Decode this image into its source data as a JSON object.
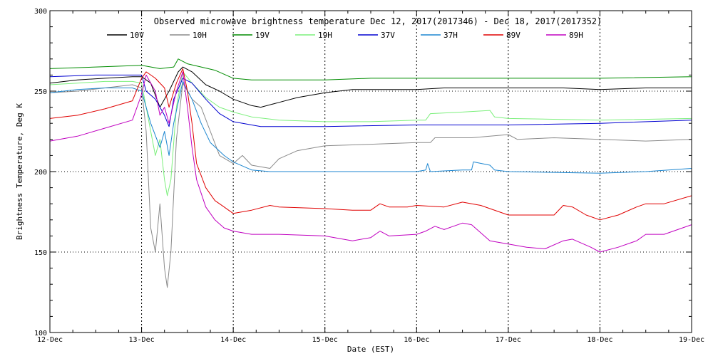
{
  "chart_data": {
    "type": "line",
    "title": "Observed microwave brightness temperature Dec 12, 2017(2017346) - Dec 18, 2017(2017352)",
    "xlabel": "Date (EST)",
    "ylabel": "Brightness Temperature, Deg K",
    "xlim": [
      0,
      7
    ],
    "ylim": [
      100,
      300
    ],
    "yticks": [
      100,
      150,
      200,
      250,
      300
    ],
    "xticks": [
      0,
      1,
      2,
      3,
      4,
      5,
      6,
      7
    ],
    "xtick_labels": [
      "12-Dec",
      "13-Dec",
      "14-Dec",
      "15-Dec",
      "16-Dec",
      "17-Dec",
      "18-Dec",
      "19-Dec"
    ],
    "grid": "dotted",
    "series": [
      {
        "name": "10V",
        "color": "#000000",
        "points": [
          [
            0,
            255
          ],
          [
            0.3,
            257
          ],
          [
            0.6,
            258
          ],
          [
            0.9,
            259
          ],
          [
            1.0,
            259
          ],
          [
            1.1,
            255
          ],
          [
            1.2,
            240
          ],
          [
            1.3,
            250
          ],
          [
            1.4,
            262
          ],
          [
            1.45,
            265
          ],
          [
            1.55,
            262
          ],
          [
            1.7,
            254
          ],
          [
            1.85,
            250
          ],
          [
            2.0,
            245
          ],
          [
            2.2,
            241
          ],
          [
            2.3,
            240
          ],
          [
            2.5,
            243
          ],
          [
            2.7,
            246
          ],
          [
            3.0,
            249
          ],
          [
            3.3,
            251
          ],
          [
            3.6,
            251
          ],
          [
            4.0,
            251
          ],
          [
            4.3,
            252
          ],
          [
            4.6,
            252
          ],
          [
            5.0,
            252
          ],
          [
            5.3,
            252
          ],
          [
            5.6,
            252
          ],
          [
            6.0,
            251
          ],
          [
            6.5,
            252
          ],
          [
            7.0,
            252
          ]
        ]
      },
      {
        "name": "10H",
        "color": "#8a8a8a",
        "points": [
          [
            0,
            249
          ],
          [
            0.3,
            250
          ],
          [
            0.6,
            252
          ],
          [
            0.9,
            254
          ],
          [
            1.0,
            252
          ],
          [
            1.05,
            225
          ],
          [
            1.1,
            165
          ],
          [
            1.15,
            150
          ],
          [
            1.2,
            180
          ],
          [
            1.25,
            140
          ],
          [
            1.28,
            128
          ],
          [
            1.32,
            150
          ],
          [
            1.38,
            220
          ],
          [
            1.45,
            255
          ],
          [
            1.55,
            245
          ],
          [
            1.65,
            240
          ],
          [
            1.75,
            225
          ],
          [
            1.85,
            210
          ],
          [
            2.0,
            205
          ],
          [
            2.1,
            210
          ],
          [
            2.2,
            204
          ],
          [
            2.3,
            203
          ],
          [
            2.4,
            202
          ],
          [
            2.5,
            208
          ],
          [
            2.7,
            213
          ],
          [
            3.0,
            216
          ],
          [
            3.5,
            217
          ],
          [
            4.0,
            218
          ],
          [
            4.15,
            218
          ],
          [
            4.2,
            221
          ],
          [
            4.6,
            221
          ],
          [
            5.0,
            223
          ],
          [
            5.1,
            220
          ],
          [
            5.5,
            221
          ],
          [
            6.0,
            220
          ],
          [
            6.5,
            219
          ],
          [
            7.0,
            220
          ]
        ]
      },
      {
        "name": "19V",
        "color": "#008c00",
        "points": [
          [
            0,
            264
          ],
          [
            0.5,
            265
          ],
          [
            1.0,
            266
          ],
          [
            1.2,
            264
          ],
          [
            1.35,
            265
          ],
          [
            1.4,
            270
          ],
          [
            1.5,
            267
          ],
          [
            1.8,
            263
          ],
          [
            2.0,
            258
          ],
          [
            2.2,
            257
          ],
          [
            2.6,
            257
          ],
          [
            3.0,
            257
          ],
          [
            3.5,
            258
          ],
          [
            4.0,
            258
          ],
          [
            5.0,
            258
          ],
          [
            6.0,
            258
          ],
          [
            7.0,
            259
          ]
        ]
      },
      {
        "name": "19H",
        "color": "#7cf07c",
        "points": [
          [
            0,
            254
          ],
          [
            0.3,
            255
          ],
          [
            0.6,
            256
          ],
          [
            0.9,
            256
          ],
          [
            1.0,
            255
          ],
          [
            1.1,
            225
          ],
          [
            1.15,
            210
          ],
          [
            1.2,
            220
          ],
          [
            1.25,
            195
          ],
          [
            1.28,
            185
          ],
          [
            1.32,
            195
          ],
          [
            1.38,
            240
          ],
          [
            1.45,
            262
          ],
          [
            1.55,
            255
          ],
          [
            1.7,
            246
          ],
          [
            1.85,
            240
          ],
          [
            2.0,
            237
          ],
          [
            2.2,
            234
          ],
          [
            2.5,
            232
          ],
          [
            3.0,
            231
          ],
          [
            3.5,
            231
          ],
          [
            4.0,
            232
          ],
          [
            4.1,
            232
          ],
          [
            4.15,
            236
          ],
          [
            4.5,
            237
          ],
          [
            4.8,
            238
          ],
          [
            4.85,
            234
          ],
          [
            5.0,
            233
          ],
          [
            6.0,
            232
          ],
          [
            7.0,
            233
          ]
        ]
      },
      {
        "name": "37V",
        "color": "#0000d0",
        "points": [
          [
            0,
            259
          ],
          [
            0.5,
            260
          ],
          [
            1.0,
            260
          ],
          [
            1.05,
            250
          ],
          [
            1.15,
            245
          ],
          [
            1.25,
            235
          ],
          [
            1.3,
            228
          ],
          [
            1.35,
            245
          ],
          [
            1.45,
            258
          ],
          [
            1.55,
            255
          ],
          [
            1.7,
            245
          ],
          [
            1.85,
            236
          ],
          [
            2.0,
            231
          ],
          [
            2.3,
            228
          ],
          [
            2.6,
            228
          ],
          [
            3.0,
            228
          ],
          [
            4.0,
            229
          ],
          [
            5.0,
            229
          ],
          [
            6.0,
            230
          ],
          [
            7.0,
            232
          ]
        ]
      },
      {
        "name": "37H",
        "color": "#1c86d0",
        "points": [
          [
            0,
            249
          ],
          [
            0.3,
            251
          ],
          [
            0.6,
            252
          ],
          [
            0.9,
            252
          ],
          [
            1.0,
            250
          ],
          [
            1.1,
            230
          ],
          [
            1.2,
            215
          ],
          [
            1.25,
            225
          ],
          [
            1.3,
            210
          ],
          [
            1.35,
            230
          ],
          [
            1.45,
            256
          ],
          [
            1.55,
            245
          ],
          [
            1.65,
            230
          ],
          [
            1.75,
            218
          ],
          [
            1.9,
            210
          ],
          [
            2.0,
            206
          ],
          [
            2.2,
            201
          ],
          [
            2.4,
            200
          ],
          [
            3.0,
            200
          ],
          [
            3.5,
            200
          ],
          [
            4.0,
            200
          ],
          [
            4.1,
            201
          ],
          [
            4.12,
            205
          ],
          [
            4.15,
            200
          ],
          [
            4.5,
            201
          ],
          [
            4.6,
            201
          ],
          [
            4.62,
            206
          ],
          [
            4.8,
            204
          ],
          [
            4.85,
            201
          ],
          [
            5.0,
            200
          ],
          [
            6.0,
            199
          ],
          [
            6.5,
            200
          ],
          [
            7.0,
            202
          ]
        ]
      },
      {
        "name": "89V",
        "color": "#e00000",
        "points": [
          [
            0,
            233
          ],
          [
            0.3,
            235
          ],
          [
            0.6,
            239
          ],
          [
            0.9,
            244
          ],
          [
            1.0,
            258
          ],
          [
            1.05,
            262
          ],
          [
            1.15,
            258
          ],
          [
            1.25,
            252
          ],
          [
            1.3,
            240
          ],
          [
            1.38,
            255
          ],
          [
            1.45,
            264
          ],
          [
            1.5,
            250
          ],
          [
            1.55,
            230
          ],
          [
            1.6,
            205
          ],
          [
            1.7,
            190
          ],
          [
            1.8,
            182
          ],
          [
            1.9,
            178
          ],
          [
            2.0,
            174
          ],
          [
            2.2,
            176
          ],
          [
            2.4,
            179
          ],
          [
            2.5,
            178
          ],
          [
            3.0,
            177
          ],
          [
            3.3,
            176
          ],
          [
            3.5,
            176
          ],
          [
            3.6,
            180
          ],
          [
            3.7,
            178
          ],
          [
            3.9,
            178
          ],
          [
            4.0,
            179
          ],
          [
            4.3,
            178
          ],
          [
            4.5,
            181
          ],
          [
            4.7,
            179
          ],
          [
            5.0,
            173
          ],
          [
            5.3,
            173
          ],
          [
            5.5,
            173
          ],
          [
            5.6,
            179
          ],
          [
            5.7,
            178
          ],
          [
            5.85,
            173
          ],
          [
            6.0,
            170
          ],
          [
            6.2,
            173
          ],
          [
            6.4,
            178
          ],
          [
            6.5,
            180
          ],
          [
            6.7,
            180
          ],
          [
            7.0,
            185
          ]
        ]
      },
      {
        "name": "89H",
        "color": "#c000c0",
        "points": [
          [
            0,
            219
          ],
          [
            0.3,
            222
          ],
          [
            0.6,
            227
          ],
          [
            0.9,
            232
          ],
          [
            1.0,
            248
          ],
          [
            1.05,
            260
          ],
          [
            1.15,
            250
          ],
          [
            1.2,
            235
          ],
          [
            1.25,
            240
          ],
          [
            1.3,
            230
          ],
          [
            1.38,
            250
          ],
          [
            1.45,
            262
          ],
          [
            1.5,
            240
          ],
          [
            1.55,
            215
          ],
          [
            1.6,
            195
          ],
          [
            1.7,
            178
          ],
          [
            1.8,
            170
          ],
          [
            1.9,
            165
          ],
          [
            2.0,
            163
          ],
          [
            2.2,
            161
          ],
          [
            2.5,
            161
          ],
          [
            3.0,
            160
          ],
          [
            3.3,
            157
          ],
          [
            3.5,
            159
          ],
          [
            3.6,
            163
          ],
          [
            3.7,
            160
          ],
          [
            4.0,
            161
          ],
          [
            4.1,
            163
          ],
          [
            4.2,
            166
          ],
          [
            4.3,
            164
          ],
          [
            4.5,
            168
          ],
          [
            4.6,
            167
          ],
          [
            4.8,
            157
          ],
          [
            5.0,
            155
          ],
          [
            5.2,
            153
          ],
          [
            5.4,
            152
          ],
          [
            5.6,
            157
          ],
          [
            5.7,
            158
          ],
          [
            5.9,
            153
          ],
          [
            6.0,
            150
          ],
          [
            6.2,
            153
          ],
          [
            6.4,
            157
          ],
          [
            6.5,
            161
          ],
          [
            6.7,
            161
          ],
          [
            7.0,
            167
          ]
        ]
      }
    ]
  }
}
